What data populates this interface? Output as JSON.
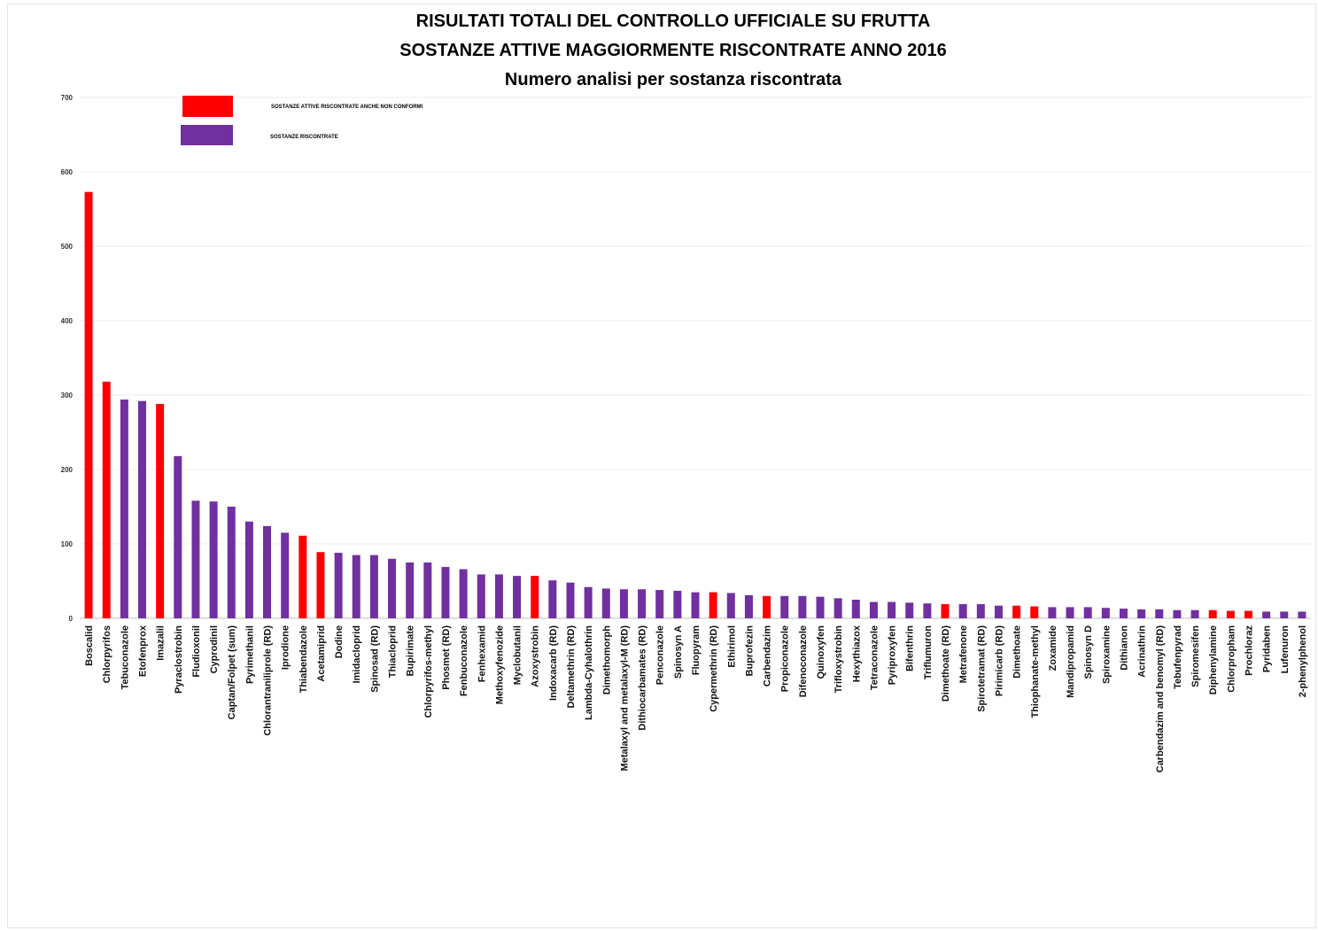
{
  "title": {
    "line1": "RISULTATI TOTALI DEL CONTROLLO UFFICIALE SU FRUTTA",
    "line2": "SOSTANZE ATTIVE MAGGIORMENTE RISCONTRATE ANNO 2016",
    "line3": "Numero  analisi per sostanza  riscontrata"
  },
  "legend": [
    {
      "label": "SOSTANZE ATTIVE RISCONTRATE ANCHE NON CONFORMI",
      "color": "#ff0000"
    },
    {
      "label": "SOSTANZE RISCONTRATE",
      "color": "#7030a0"
    }
  ],
  "chart_data": {
    "type": "bar",
    "title": "RISULTATI TOTALI DEL CONTROLLO UFFICIALE SU FRUTTA / SOSTANZE ATTIVE MAGGIORMENTE RISCONTRATE ANNO 2016 / Numero  analisi per sostanza  riscontrata",
    "xlabel": "",
    "ylabel": "",
    "ylim": [
      0,
      700
    ],
    "yticks": [
      0,
      100,
      200,
      300,
      400,
      500,
      600,
      700
    ],
    "grid": true,
    "legend_position": "top-left",
    "colors": {
      "non_conformi": "#ff0000",
      "riscontrate": "#7030a0"
    },
    "categories": [
      "Boscalid",
      "Chlorpyrifos",
      "Tebuconazole",
      "Etofenprox",
      "Imazalil",
      "Pyraclostrobin",
      "Fludioxonil",
      "Cyprodinil",
      "Captan/Folpet (sum)",
      "Pyrimethanil",
      "Chlorantraniliprole (RD)",
      "Iprodione",
      "Thiabendazole",
      "Acetamiprid",
      "Dodine",
      "Imidacloprid",
      "Spinosad (RD)",
      "Thiacloprid",
      "Bupirimate",
      "Chlorpyrifos-methyl",
      "Phosmet (RD)",
      "Fenbuconazole",
      "Fenhexamid",
      "Methoxyfenozide",
      "Myclobutanil",
      "Azoxystrobin",
      "Indoxacarb (RD)",
      "Deltamethrin (RD)",
      "Lambda-Cyhalothrin",
      "Dimethomorph",
      "Metalaxyl and metalaxyl-M (RD)",
      "Dithiocarbamates (RD)",
      "Penconazole",
      "Spinosyn A",
      "Fluopyram",
      "Cypermethrin (RD)",
      "Ethirimol",
      "Buprofezin",
      "Carbendazim",
      "Propiconazole",
      "Difenoconazole",
      "Quinoxyfen",
      "Trifloxystrobin",
      "Hexythiazox",
      "Tetraconazole",
      "Pyriproxyfen",
      "Bifenthrin",
      "Triflumuron",
      "Dimethoate (RD)",
      "Metrafenone",
      "Spirotetramat (RD)",
      "Pirimicarb (RD)",
      "Dimethoate",
      "Thiophanate-methyl",
      "Zoxamide",
      "Mandipropamid",
      "Spinosyn D",
      "Spiroxamine",
      "Dithianon",
      "Acrinathrin",
      "Carbendazim and benomyl (RD)",
      "Tebufenpyrad",
      "Spiromesifen",
      "Diphenylamine",
      "Chlorpropham",
      "Prochloraz",
      "Pyridaben",
      "Lufenuron",
      "2-phenylphenol"
    ],
    "values": [
      573,
      318,
      294,
      292,
      288,
      218,
      158,
      157,
      150,
      130,
      124,
      115,
      111,
      89,
      88,
      85,
      85,
      80,
      75,
      75,
      69,
      66,
      59,
      59,
      57,
      57,
      51,
      48,
      42,
      40,
      39,
      39,
      38,
      37,
      35,
      35,
      34,
      31,
      30,
      30,
      30,
      29,
      27,
      25,
      22,
      22,
      21,
      20,
      19,
      19,
      19,
      17,
      17,
      16,
      15,
      15,
      15,
      14,
      13,
      12,
      12,
      11,
      11,
      11,
      10,
      10,
      9,
      9,
      9
    ],
    "series_flags": [
      "R",
      "R",
      "P",
      "P",
      "R",
      "P",
      "P",
      "P",
      "P",
      "P",
      "P",
      "P",
      "R",
      "R",
      "P",
      "P",
      "P",
      "P",
      "P",
      "P",
      "P",
      "P",
      "P",
      "P",
      "P",
      "R",
      "P",
      "P",
      "P",
      "P",
      "P",
      "P",
      "P",
      "P",
      "P",
      "R",
      "P",
      "P",
      "R",
      "P",
      "P",
      "P",
      "P",
      "P",
      "P",
      "P",
      "P",
      "P",
      "R",
      "P",
      "P",
      "P",
      "R",
      "R",
      "P",
      "P",
      "P",
      "P",
      "P",
      "P",
      "P",
      "P",
      "P",
      "R",
      "R",
      "R",
      "P",
      "P",
      "P"
    ]
  }
}
